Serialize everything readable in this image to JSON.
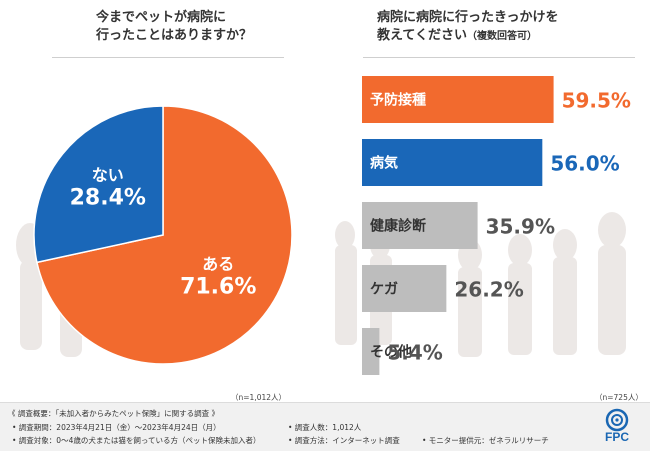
{
  "left": {
    "title_line1": "今までペットが病院に",
    "title_line2": "行ったことはありますか？",
    "n_note": "（n=1,012人）"
  },
  "right": {
    "title_line1": "病院に病院に行ったきっかけを",
    "title_line2": "教えてください",
    "title_sub": "（複数回答可）",
    "n_note": "（n=725人）"
  },
  "chart_data": [
    {
      "type": "pie",
      "title": "今までペットが病院に行ったことはありますか？",
      "slices": [
        {
          "label": "ある",
          "value": 71.6,
          "display": "71.6%",
          "color": "#f26a2e"
        },
        {
          "label": "ない",
          "value": 28.4,
          "display": "28.4%",
          "color": "#1a67b8"
        }
      ]
    },
    {
      "type": "bar",
      "orientation": "horizontal",
      "title": "病院に病院に行ったきっかけを教えてください（複数回答可）",
      "categories": [
        "予防接種",
        "病気",
        "健康診断",
        "ケガ",
        "その他"
      ],
      "values": [
        59.5,
        56.0,
        35.9,
        26.2,
        5.4
      ],
      "displays": [
        "59.5%",
        "56.0%",
        "35.9%",
        "26.2%",
        "5.4%"
      ],
      "colors": [
        "#f26a2e",
        "#1a67b8",
        "#bdbdbd",
        "#bdbdbd",
        "#bdbdbd"
      ],
      "value_colors": [
        "#f26a2e",
        "#1a67b8",
        "#555555",
        "#555555",
        "#555555"
      ],
      "xlim": [
        0,
        100
      ]
    }
  ],
  "footer": {
    "line1": "《 調査概要：「未加入者からみたペット保険」に関する調査 》",
    "line2a": "• 調査期間：2023年4月21日（金）〜2023年4月24日（月）",
    "line2b": "• 調査人数：1,012人",
    "line3a": "• 調査対象：0〜4歳の犬または猫を飼っている方（ペット保険未加入者）",
    "line3b": "• 調査方法：インターネット調査",
    "line3c": "• モニター提供元：ゼネラルリサーチ",
    "logo": "FPC"
  }
}
